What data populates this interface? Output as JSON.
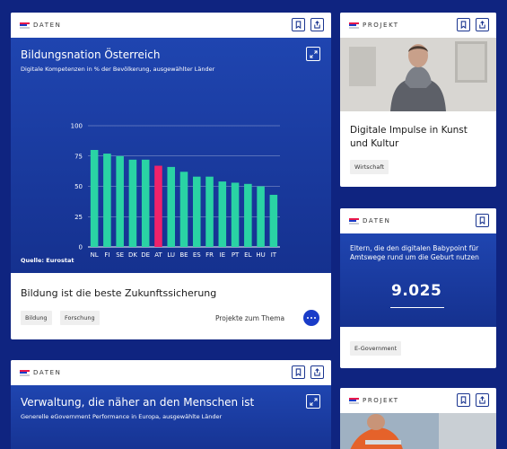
{
  "card_daten_1": {
    "brand": "DATEN",
    "title": "Bildungsnation Österreich",
    "subtitle": "Digitale Kompetenzen in % der Bevölkerung, ausgewählter Länder",
    "source": "Quelle: Eurostat",
    "footer_title": "Bildung ist die beste Zukunftssicherung",
    "tags": [
      "Bildung",
      "Forschung"
    ],
    "more_label": "Projekte zum Thema",
    "colors": {
      "bar": "#2ad3a4",
      "highlight": "#f0226a"
    }
  },
  "chart_data": {
    "type": "bar",
    "title": "Bildungsnation Österreich",
    "subtitle": "Digitale Kompetenzen in % der Bevölkerung, ausgewählter Länder",
    "categories": [
      "NL",
      "FI",
      "SE",
      "DK",
      "DE",
      "AT",
      "LU",
      "BE",
      "ES",
      "FR",
      "IE",
      "PT",
      "EL",
      "HU",
      "IT"
    ],
    "values": [
      80,
      77,
      75,
      72,
      72,
      67,
      66,
      62,
      58,
      58,
      54,
      53,
      52,
      50,
      43
    ],
    "highlight": "AT",
    "yticks": [
      0,
      25,
      50,
      75,
      100
    ],
    "ylim": [
      0,
      100
    ],
    "grid": true
  },
  "card_projekt_1": {
    "brand": "PROJEKT",
    "title": "Digitale Impulse in Kunst und Kultur",
    "tag": "Wirtschaft"
  },
  "card_daten_2": {
    "brand": "DATEN",
    "text": "Eltern, die den digitalen Babypoint für Amtswege rund um die Geburt nutzen",
    "value": "9.025",
    "tag": "E-Government"
  },
  "card_daten_3": {
    "brand": "DATEN",
    "title": "Verwaltung, die näher an den Menschen ist",
    "subtitle": "Generelle eGovernment Performance in Europa, ausgewählte Länder"
  },
  "card_projekt_2": {
    "brand": "PROJEKT"
  }
}
